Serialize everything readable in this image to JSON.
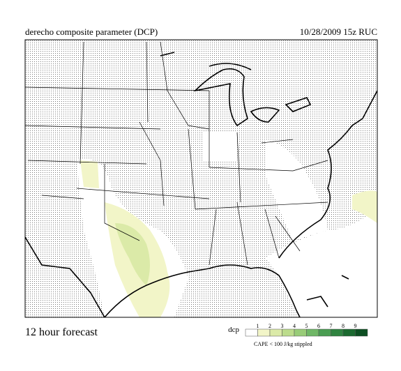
{
  "header": {
    "title": "derecho composite parameter (DCP)",
    "valid": "10/28/2009  15z  RUC"
  },
  "footer": {
    "forecast": "12 hour forecast"
  },
  "legend": {
    "name": "dcp",
    "ticks": [
      1,
      2,
      3,
      4,
      5,
      6,
      7,
      8,
      9
    ],
    "colors": [
      "#ffffff",
      "#f2f5c8",
      "#dbeaa8",
      "#bcdc8c",
      "#98cc78",
      "#6fb766",
      "#4a9d52",
      "#2f8340",
      "#1b6a30",
      "#0d4f22"
    ],
    "note": "CAPE < 100 J/kg stippled"
  }
}
